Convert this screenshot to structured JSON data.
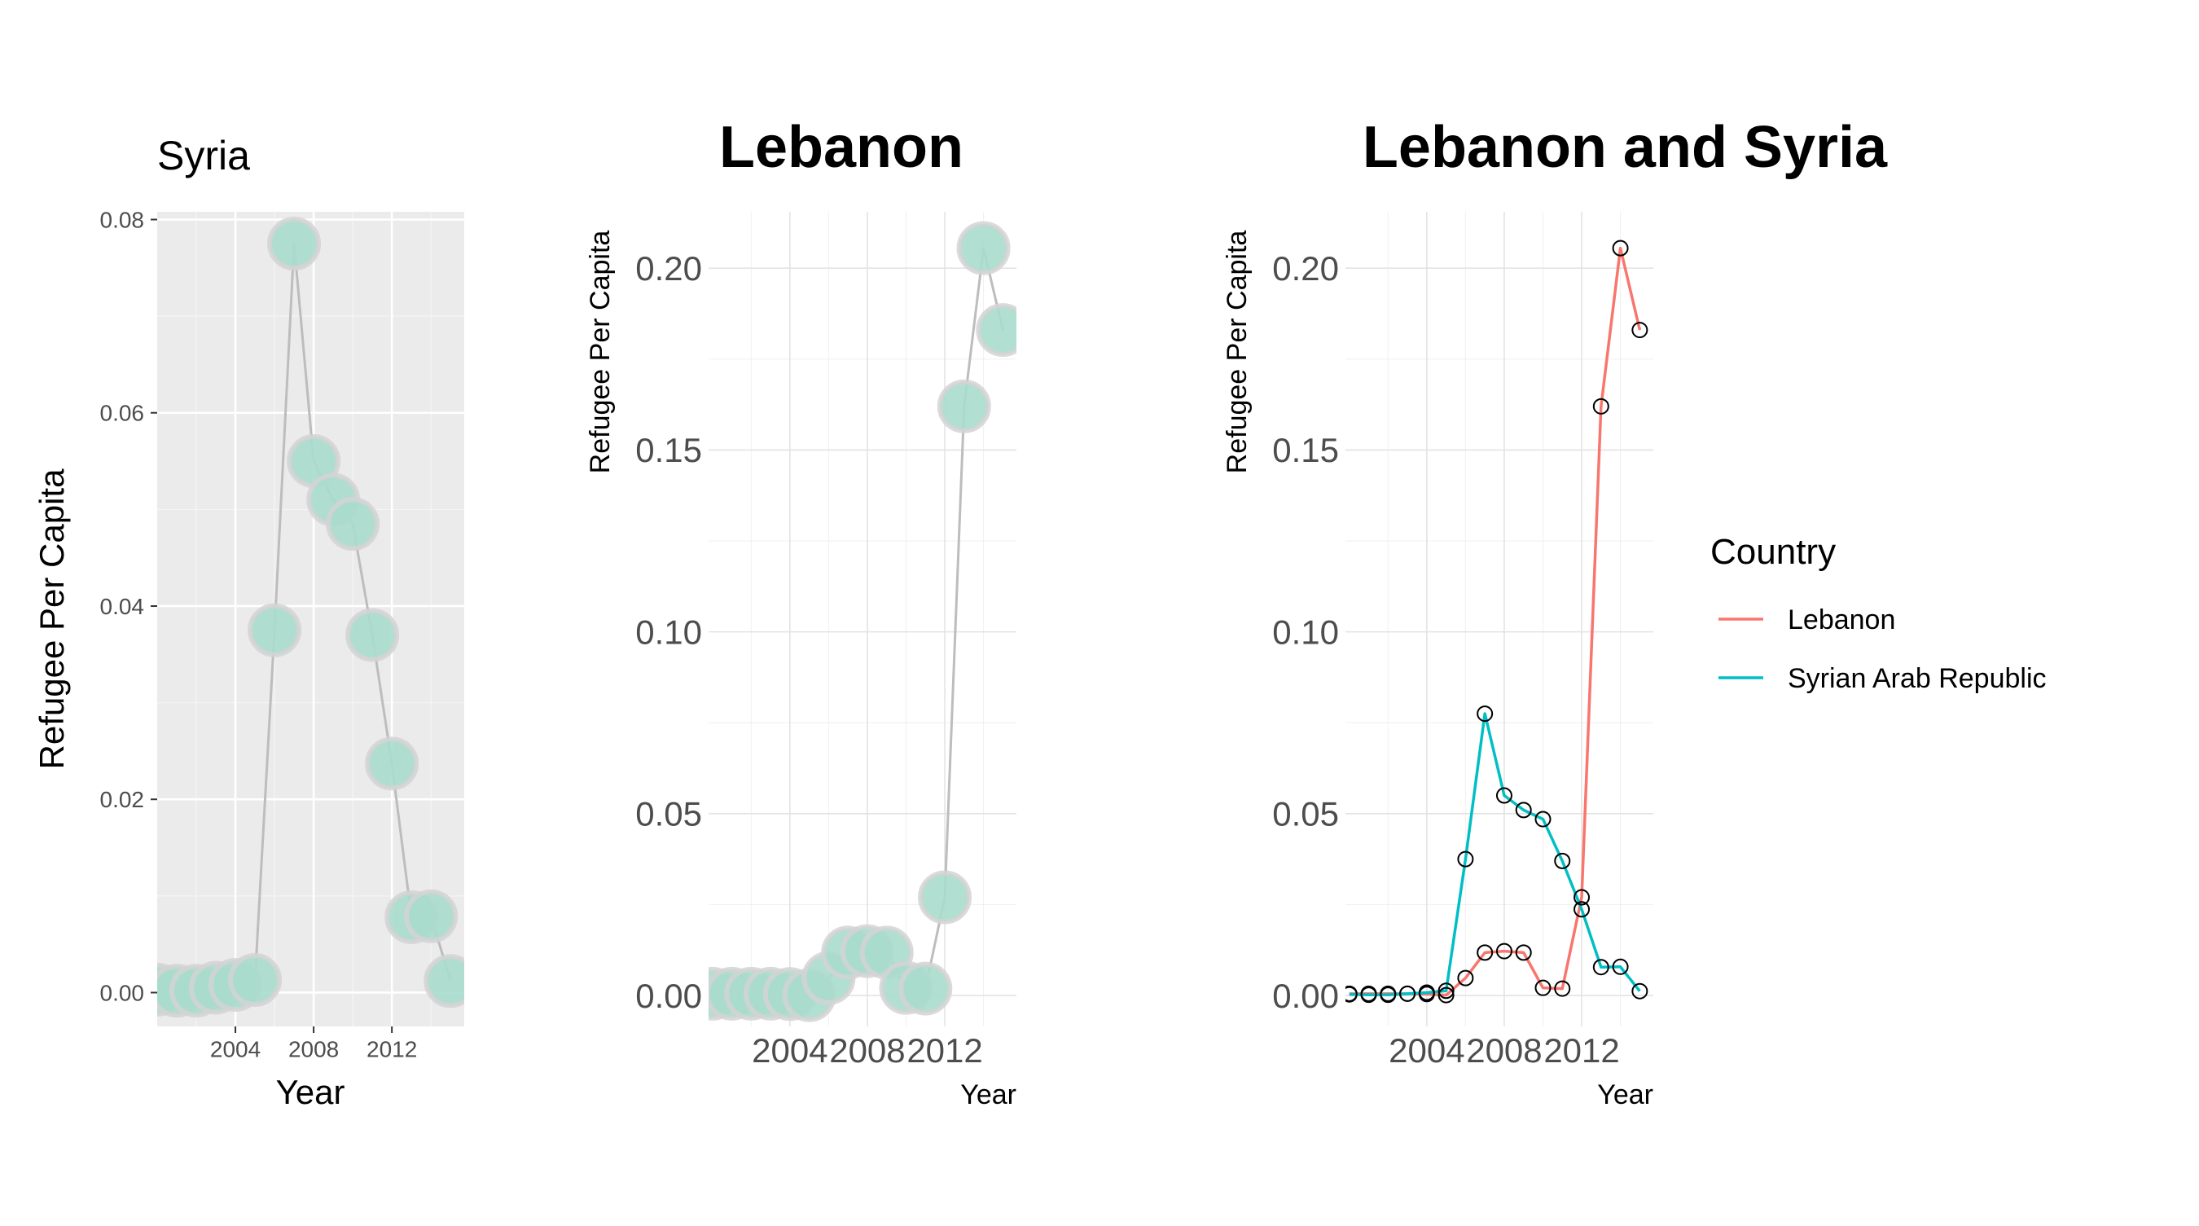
{
  "chart_data": [
    {
      "type": "line",
      "title": "Syria",
      "xlabel": "Year",
      "ylabel": "Refugee Per Capita",
      "x_ticks": [
        2004,
        2008,
        2012
      ],
      "y_ticks": [
        "0.00",
        "0.02",
        "0.04",
        "0.06",
        "0.08"
      ],
      "xlim": [
        2000,
        2015.7
      ],
      "ylim": [
        -0.0035,
        0.0808
      ],
      "grid": true,
      "background": "#ebebeb",
      "series": [
        {
          "x": [
            2000,
            2001,
            2002,
            2003,
            2004,
            2005,
            2006,
            2007,
            2008,
            2009,
            2010,
            2011,
            2012,
            2013,
            2014,
            2015
          ],
          "y": [
            0.0003,
            0.0002,
            0.0002,
            0.0005,
            0.0008,
            0.0013,
            0.0375,
            0.0775,
            0.055,
            0.051,
            0.0485,
            0.037,
            0.0237,
            0.0078,
            0.0079,
            0.0012
          ],
          "line_color": "#bdbdbd",
          "point_color": "#a8dbcc"
        }
      ]
    },
    {
      "type": "line",
      "title": "Lebanon",
      "xlabel": "Year",
      "ylabel": "Refugee Per Capita",
      "x_ticks": [
        2004,
        2008,
        2012
      ],
      "y_ticks": [
        "0.00",
        "0.05",
        "0.10",
        "0.15",
        "0.20"
      ],
      "xlim": [
        1999.8,
        2015.7
      ],
      "ylim": [
        -0.0085,
        0.2155
      ],
      "grid": true,
      "series": [
        {
          "x": [
            2000,
            2001,
            2002,
            2003,
            2004,
            2005,
            2006,
            2007,
            2008,
            2009,
            2010,
            2011,
            2012,
            2013,
            2014,
            2015
          ],
          "y": [
            0.0005,
            0.0005,
            0.0005,
            0.0005,
            0.0004,
            0.0001,
            0.0048,
            0.0118,
            0.0122,
            0.0118,
            0.0021,
            0.0019,
            0.027,
            0.162,
            0.2055,
            0.183
          ],
          "line_color": "#bdbdbd",
          "point_color": "#a8dbcc"
        }
      ]
    },
    {
      "type": "line",
      "title": "Lebanon and Syria",
      "xlabel": "Year",
      "ylabel": "Refugee Per Capita",
      "x_ticks": [
        2004,
        2008,
        2012
      ],
      "y_ticks": [
        "0.00",
        "0.05",
        "0.10",
        "0.15",
        "0.20"
      ],
      "xlim": [
        1999.8,
        2015.7
      ],
      "ylim": [
        -0.0085,
        0.2155
      ],
      "grid": true,
      "legend": {
        "title": "Country",
        "placement": "right"
      },
      "series": [
        {
          "name": "Lebanon",
          "color": "#f8766d",
          "x": [
            2000,
            2001,
            2002,
            2003,
            2004,
            2005,
            2006,
            2007,
            2008,
            2009,
            2010,
            2011,
            2012,
            2013,
            2014,
            2015
          ],
          "y": [
            0.0005,
            0.0005,
            0.0005,
            0.0005,
            0.0004,
            0.0001,
            0.0048,
            0.0118,
            0.0122,
            0.0118,
            0.0021,
            0.0019,
            0.027,
            0.162,
            0.2055,
            0.183
          ]
        },
        {
          "name": "Syrian Arab Republic",
          "color": "#00bfc4",
          "x": [
            2000,
            2001,
            2002,
            2003,
            2004,
            2005,
            2006,
            2007,
            2008,
            2009,
            2010,
            2011,
            2012,
            2013,
            2014,
            2015
          ],
          "y": [
            0.0003,
            0.0002,
            0.0002,
            0.0005,
            0.0008,
            0.0013,
            0.0375,
            0.0775,
            0.055,
            0.051,
            0.0485,
            0.037,
            0.0237,
            0.0078,
            0.0079,
            0.0012
          ]
        }
      ]
    }
  ]
}
